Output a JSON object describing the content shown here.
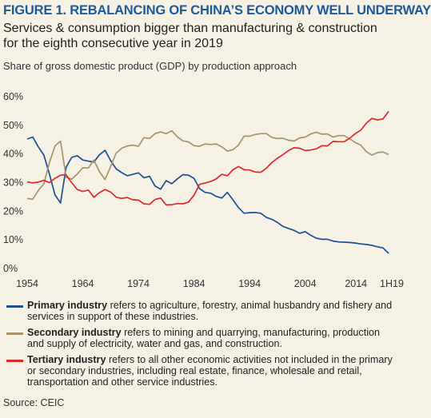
{
  "title": "FIGURE 1. REBALANCING OF CHINA’S ECONOMY WELL UNDERWAY",
  "subtitle": "Services & consumption bigger than manufacturing & construction for the eighth consecutive year in 2019",
  "source": "Source: CEIC",
  "chart_data": {
    "type": "line",
    "caption": "Share of gross domestic product (GDP) by production approach",
    "x": [
      1954,
      1955,
      1956,
      1957,
      1958,
      1959,
      1960,
      1961,
      1962,
      1963,
      1964,
      1965,
      1966,
      1967,
      1968,
      1969,
      1970,
      1971,
      1972,
      1973,
      1974,
      1975,
      1976,
      1977,
      1978,
      1979,
      1980,
      1981,
      1982,
      1983,
      1984,
      1985,
      1986,
      1987,
      1988,
      1989,
      1990,
      1991,
      1992,
      1993,
      1994,
      1995,
      1996,
      1997,
      1998,
      1999,
      2000,
      2001,
      2002,
      2003,
      2004,
      2005,
      2006,
      2007,
      2008,
      2009,
      2010,
      2011,
      2012,
      2013,
      2014,
      2015,
      2016,
      2017,
      2018,
      2019
    ],
    "x_tick_labels": [
      "1954",
      "1964",
      "1974",
      "1984",
      "1994",
      "2004",
      "2014",
      "1H19"
    ],
    "x_tick_values": [
      1954,
      1964,
      1974,
      1984,
      1994,
      2004,
      2014,
      2019
    ],
    "y_tick_labels": [
      "0%",
      "10%",
      "20%",
      "30%",
      "40%",
      "50%",
      "60%"
    ],
    "y_tick_values": [
      0,
      10,
      20,
      30,
      40,
      50,
      60
    ],
    "ylim": [
      0,
      60
    ],
    "series": [
      {
        "name": "Primary industry",
        "color": "#1d4f94",
        "values": [
          45.2,
          45.9,
          42.5,
          39.6,
          33.0,
          25.7,
          22.9,
          35.4,
          38.8,
          39.4,
          37.9,
          37.5,
          37.2,
          39.7,
          41.3,
          37.7,
          34.8,
          33.5,
          32.4,
          32.9,
          33.4,
          31.7,
          32.2,
          28.8,
          27.7,
          30.7,
          29.6,
          31.3,
          32.8,
          32.6,
          31.5,
          27.9,
          26.6,
          26.3,
          25.2,
          24.6,
          26.6,
          24.0,
          21.3,
          19.3,
          19.5,
          19.6,
          19.3,
          17.9,
          17.2,
          16.1,
          14.7,
          14.0,
          13.3,
          12.3,
          12.9,
          11.6,
          10.6,
          10.2,
          10.2,
          9.6,
          9.3,
          9.2,
          9.1,
          8.9,
          8.6,
          8.4,
          8.1,
          7.6,
          7.2,
          5.3
        ]
      },
      {
        "name": "Secondary industry",
        "color": "#a8936a",
        "values": [
          24.5,
          24.2,
          27.3,
          29.6,
          37.0,
          42.8,
          44.5,
          31.9,
          31.2,
          33.0,
          35.2,
          35.1,
          37.9,
          33.8,
          31.1,
          35.6,
          40.3,
          42.0,
          42.8,
          43.1,
          42.7,
          45.7,
          45.4,
          47.1,
          47.7,
          47.1,
          48.1,
          46.0,
          44.6,
          44.2,
          42.9,
          42.7,
          43.5,
          43.3,
          43.5,
          42.5,
          41.0,
          41.5,
          43.1,
          46.2,
          46.2,
          46.8,
          47.1,
          47.1,
          45.8,
          45.4,
          45.5,
          44.8,
          44.5,
          45.6,
          45.9,
          47.0,
          47.6,
          46.9,
          47.0,
          45.9,
          46.4,
          46.4,
          45.3,
          44.0,
          43.1,
          40.8,
          39.6,
          40.5,
          40.7,
          39.8
        ]
      },
      {
        "name": "Tertiary industry",
        "color": "#e0282d",
        "values": [
          30.3,
          29.9,
          30.2,
          30.8,
          30.0,
          31.5,
          32.6,
          32.7,
          30.0,
          27.6,
          26.9,
          27.4,
          24.9,
          26.5,
          27.6,
          26.7,
          24.9,
          24.5,
          24.8,
          24.0,
          23.9,
          22.6,
          22.4,
          24.1,
          24.6,
          22.2,
          22.3,
          22.7,
          22.6,
          23.2,
          25.6,
          29.4,
          29.9,
          30.4,
          31.3,
          32.9,
          32.4,
          34.5,
          35.6,
          34.5,
          34.4,
          33.7,
          33.6,
          35.0,
          37.0,
          38.5,
          39.8,
          41.2,
          42.2,
          42.0,
          41.2,
          41.4,
          41.8,
          42.9,
          42.8,
          44.4,
          44.3,
          44.3,
          45.5,
          47.1,
          48.3,
          50.8,
          52.4,
          51.9,
          52.2,
          54.9
        ]
      }
    ]
  },
  "legend": [
    {
      "name": "Primary industry",
      "color": "#1d4f94",
      "desc": " refers to agriculture, forestry, animal husbandry and fishery and services in support of these industries."
    },
    {
      "name": "Secondary industry",
      "color": "#a8936a",
      "desc": " refers to mining and quarrying, manufacturing, production and supply of electricity, water and gas, and construction."
    },
    {
      "name": "Tertiary industry",
      "color": "#e0282d",
      "desc": " refers to all other economic activities not included in the primary or secondary industries, including real estate, finance, wholesale and retail, transportation and other service industries."
    }
  ]
}
